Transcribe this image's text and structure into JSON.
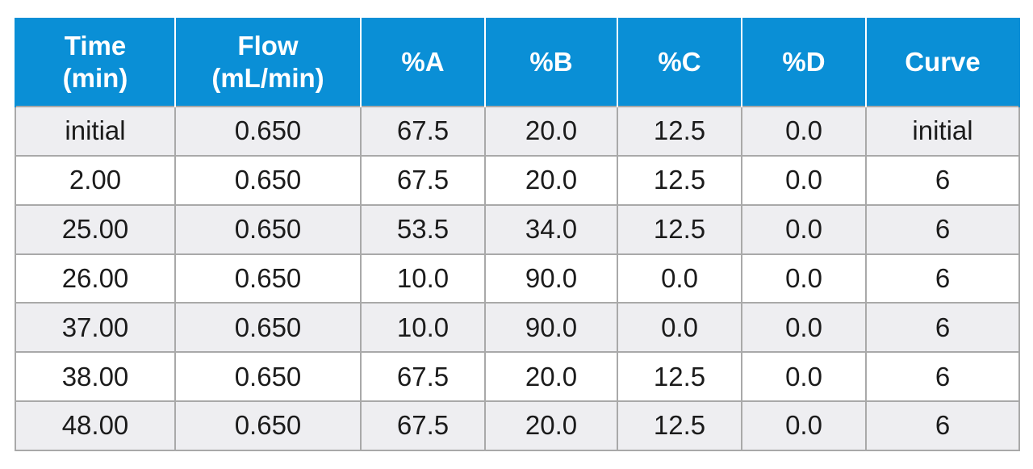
{
  "table": {
    "headers": [
      {
        "line1": "Time",
        "line2": "(min)"
      },
      {
        "line1": "Flow",
        "line2": "(mL/min)"
      },
      {
        "line1": "%A",
        "line2": ""
      },
      {
        "line1": "%B",
        "line2": ""
      },
      {
        "line1": "%C",
        "line2": ""
      },
      {
        "line1": "%D",
        "line2": ""
      },
      {
        "line1": "Curve",
        "line2": ""
      }
    ],
    "rows": [
      [
        "initial",
        "0.650",
        "67.5",
        "20.0",
        "12.5",
        "0.0",
        "initial"
      ],
      [
        "2.00",
        "0.650",
        "67.5",
        "20.0",
        "12.5",
        "0.0",
        "6"
      ],
      [
        "25.00",
        "0.650",
        "53.5",
        "34.0",
        "12.5",
        "0.0",
        "6"
      ],
      [
        "26.00",
        "0.650",
        "10.0",
        "90.0",
        "0.0",
        "0.0",
        "6"
      ],
      [
        "37.00",
        "0.650",
        "10.0",
        "90.0",
        "0.0",
        "0.0",
        "6"
      ],
      [
        "38.00",
        "0.650",
        "67.5",
        "20.0",
        "12.5",
        "0.0",
        "6"
      ],
      [
        "48.00",
        "0.650",
        "67.5",
        "20.0",
        "12.5",
        "0.0",
        "6"
      ]
    ]
  },
  "colors": {
    "header_background": "#0a8fd6",
    "header_text": "#ffffff",
    "row_shade": "#eeeef1",
    "row_plain": "#ffffff",
    "grid": "#a9a9a9"
  }
}
